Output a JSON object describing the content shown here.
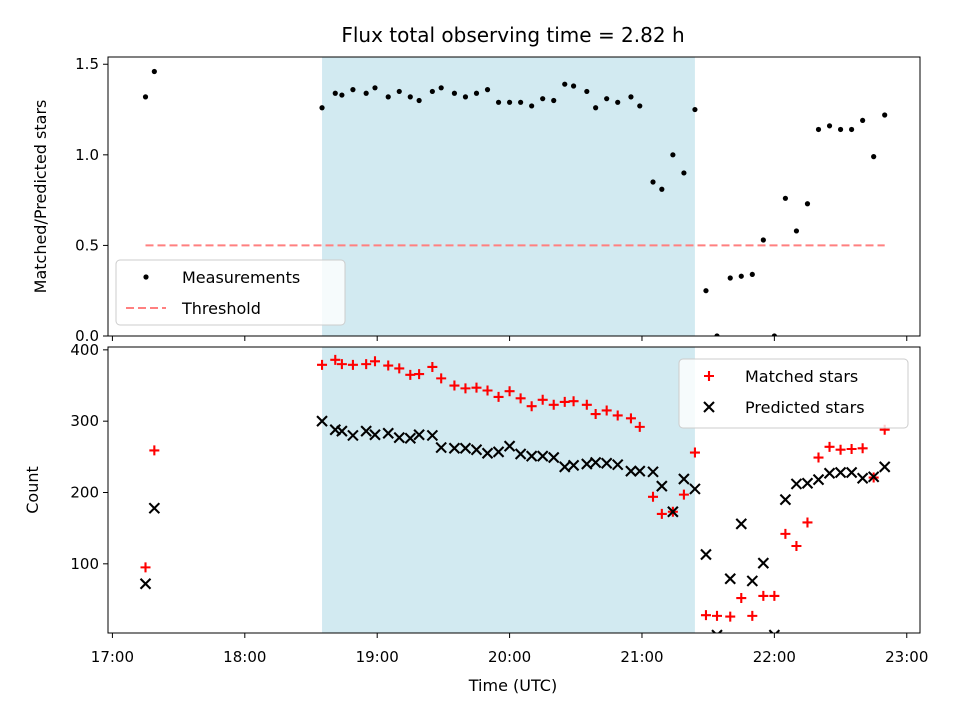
{
  "chart_data": {
    "title": "Flux total observing time = 2.82 h",
    "xlabel": "Time (UTC)",
    "xlim": [
      "16:58",
      "23:06"
    ],
    "xticks": [
      "17:00",
      "18:00",
      "19:00",
      "20:00",
      "21:00",
      "22:00",
      "23:00"
    ],
    "highlight_span": {
      "start": "18:35",
      "end": "21:24",
      "color": "#add8e6"
    },
    "colors": {
      "measurements": "#000000",
      "threshold": "#ff8080",
      "matched": "#ff0000",
      "predicted": "#000000",
      "span": "#add8e6"
    },
    "panels": [
      {
        "type": "scatter",
        "ylabel": "Matched/Predicted stars",
        "ylim": [
          0,
          1.54
        ],
        "yticks": [
          "0.0",
          "0.5",
          "1.0",
          "1.5"
        ],
        "legend_position": "lower-left",
        "series": [
          {
            "name": "Measurements",
            "marker": "dot",
            "points": [
              [
                "17:15",
                1.32
              ],
              [
                "17:19",
                1.46
              ],
              [
                "18:35",
                1.26
              ],
              [
                "18:41",
                1.34
              ],
              [
                "18:44",
                1.33
              ],
              [
                "18:49",
                1.36
              ],
              [
                "18:55",
                1.34
              ],
              [
                "18:59",
                1.37
              ],
              [
                "19:05",
                1.32
              ],
              [
                "19:10",
                1.35
              ],
              [
                "19:15",
                1.32
              ],
              [
                "19:19",
                1.3
              ],
              [
                "19:25",
                1.35
              ],
              [
                "19:29",
                1.37
              ],
              [
                "19:35",
                1.34
              ],
              [
                "19:40",
                1.32
              ],
              [
                "19:45",
                1.34
              ],
              [
                "19:50",
                1.36
              ],
              [
                "19:55",
                1.29
              ],
              [
                "20:00",
                1.29
              ],
              [
                "20:05",
                1.29
              ],
              [
                "20:10",
                1.27
              ],
              [
                "20:15",
                1.31
              ],
              [
                "20:20",
                1.3
              ],
              [
                "20:25",
                1.39
              ],
              [
                "20:29",
                1.38
              ],
              [
                "20:35",
                1.35
              ],
              [
                "20:39",
                1.26
              ],
              [
                "20:44",
                1.31
              ],
              [
                "20:49",
                1.29
              ],
              [
                "20:55",
                1.32
              ],
              [
                "20:59",
                1.27
              ],
              [
                "21:05",
                0.85
              ],
              [
                "21:09",
                0.81
              ],
              [
                "21:14",
                1.0
              ],
              [
                "21:19",
                0.9
              ],
              [
                "21:24",
                1.25
              ],
              [
                "21:29",
                0.25
              ],
              [
                "21:34",
                0.0
              ],
              [
                "21:40",
                0.32
              ],
              [
                "21:45",
                0.33
              ],
              [
                "21:50",
                0.34
              ],
              [
                "21:55",
                0.53
              ],
              [
                "22:00",
                0.0
              ],
              [
                "22:05",
                0.76
              ],
              [
                "22:10",
                0.58
              ],
              [
                "22:15",
                0.73
              ],
              [
                "22:20",
                1.14
              ],
              [
                "22:25",
                1.16
              ],
              [
                "22:30",
                1.14
              ],
              [
                "22:35",
                1.14
              ],
              [
                "22:40",
                1.19
              ],
              [
                "22:45",
                0.99
              ],
              [
                "22:50",
                1.22
              ]
            ]
          },
          {
            "name": "Threshold",
            "line": "dashed",
            "value": 0.5,
            "x_range": [
              "17:15",
              "22:50"
            ]
          }
        ]
      },
      {
        "type": "scatter",
        "ylabel": "Count",
        "ylim": [
          3,
          404
        ],
        "yticks": [
          "100",
          "200",
          "300",
          "400"
        ],
        "legend_position": "upper-right",
        "series": [
          {
            "name": "Matched stars",
            "marker": "plus",
            "points": [
              [
                "17:15",
                95
              ],
              [
                "17:19",
                259
              ],
              [
                "18:35",
                379
              ],
              [
                "18:41",
                386
              ],
              [
                "18:44",
                380
              ],
              [
                "18:49",
                379
              ],
              [
                "18:55",
                380
              ],
              [
                "18:59",
                384
              ],
              [
                "19:05",
                378
              ],
              [
                "19:10",
                374
              ],
              [
                "19:15",
                365
              ],
              [
                "19:19",
                366
              ],
              [
                "19:25",
                376
              ],
              [
                "19:29",
                360
              ],
              [
                "19:35",
                350
              ],
              [
                "19:40",
                346
              ],
              [
                "19:45",
                347
              ],
              [
                "19:50",
                343
              ],
              [
                "19:55",
                334
              ],
              [
                "20:00",
                342
              ],
              [
                "20:05",
                332
              ],
              [
                "20:10",
                321
              ],
              [
                "20:15",
                330
              ],
              [
                "20:20",
                323
              ],
              [
                "20:25",
                327
              ],
              [
                "20:29",
                328
              ],
              [
                "20:35",
                323
              ],
              [
                "20:39",
                310
              ],
              [
                "20:44",
                315
              ],
              [
                "20:49",
                308
              ],
              [
                "20:55",
                304
              ],
              [
                "20:59",
                292
              ],
              [
                "21:05",
                194
              ],
              [
                "21:09",
                170
              ],
              [
                "21:14",
                173
              ],
              [
                "21:19",
                197
              ],
              [
                "21:24",
                256
              ],
              [
                "21:29",
                28
              ],
              [
                "21:34",
                27
              ],
              [
                "21:40",
                26
              ],
              [
                "21:45",
                52
              ],
              [
                "21:50",
                27
              ],
              [
                "21:55",
                55
              ],
              [
                "22:00",
                55
              ],
              [
                "22:05",
                142
              ],
              [
                "22:10",
                125
              ],
              [
                "22:15",
                158
              ],
              [
                "22:20",
                249
              ],
              [
                "22:25",
                264
              ],
              [
                "22:30",
                260
              ],
              [
                "22:35",
                261
              ],
              [
                "22:40",
                262
              ],
              [
                "22:45",
                221
              ],
              [
                "22:50",
                288
              ]
            ]
          },
          {
            "name": "Predicted stars",
            "marker": "x",
            "points": [
              [
                "17:15",
                72
              ],
              [
                "17:19",
                178
              ],
              [
                "18:35",
                300
              ],
              [
                "18:41",
                288
              ],
              [
                "18:44",
                286
              ],
              [
                "18:49",
                280
              ],
              [
                "18:55",
                286
              ],
              [
                "18:59",
                281
              ],
              [
                "19:05",
                283
              ],
              [
                "19:10",
                277
              ],
              [
                "19:15",
                276
              ],
              [
                "19:19",
                281
              ],
              [
                "19:25",
                280
              ],
              [
                "19:29",
                263
              ],
              [
                "19:35",
                262
              ],
              [
                "19:40",
                262
              ],
              [
                "19:45",
                260
              ],
              [
                "19:50",
                255
              ],
              [
                "19:55",
                257
              ],
              [
                "20:00",
                265
              ],
              [
                "20:05",
                254
              ],
              [
                "20:10",
                251
              ],
              [
                "20:15",
                251
              ],
              [
                "20:20",
                249
              ],
              [
                "20:25",
                236
              ],
              [
                "20:29",
                238
              ],
              [
                "20:35",
                240
              ],
              [
                "20:39",
                242
              ],
              [
                "20:44",
                241
              ],
              [
                "20:49",
                239
              ],
              [
                "20:55",
                230
              ],
              [
                "20:59",
                230
              ],
              [
                "21:05",
                229
              ],
              [
                "21:09",
                209
              ],
              [
                "21:14",
                173
              ],
              [
                "21:19",
                219
              ],
              [
                "21:24",
                205
              ],
              [
                "21:29",
                113
              ],
              [
                "21:34",
                0
              ],
              [
                "21:40",
                79
              ],
              [
                "21:45",
                156
              ],
              [
                "21:50",
                76
              ],
              [
                "21:55",
                101
              ],
              [
                "22:00",
                0
              ],
              [
                "22:05",
                190
              ],
              [
                "22:10",
                212
              ],
              [
                "22:15",
                213
              ],
              [
                "22:20",
                218
              ],
              [
                "22:25",
                227
              ],
              [
                "22:30",
                228
              ],
              [
                "22:35",
                228
              ],
              [
                "22:40",
                220
              ],
              [
                "22:45",
                222
              ],
              [
                "22:50",
                236
              ]
            ]
          }
        ]
      }
    ]
  }
}
